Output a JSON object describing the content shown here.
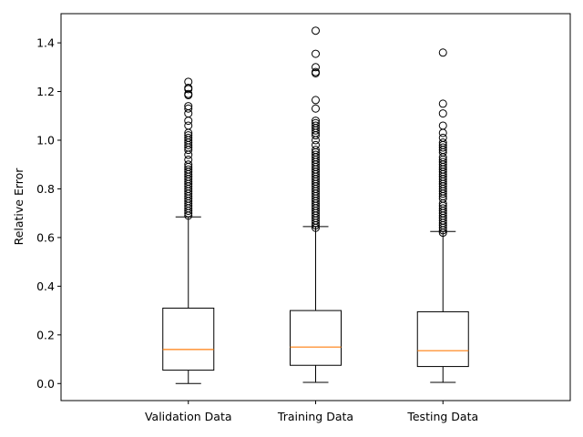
{
  "chart_data": {
    "type": "box",
    "title": "",
    "xlabel": "",
    "ylabel": "Relative Error",
    "ylim": [
      -0.07,
      1.52
    ],
    "yticks": [
      "0.0",
      "0.2",
      "0.4",
      "0.6",
      "0.8",
      "1.0",
      "1.2",
      "1.4"
    ],
    "grid": false,
    "colors": {
      "box": "#000000",
      "median": "#ff7f0e",
      "outlier": "#000000"
    },
    "categories": [
      "Validation Data",
      "Training Data",
      "Testing Data"
    ],
    "boxes": [
      {
        "name": "Validation Data",
        "whisker_low": 0.0,
        "q1": 0.055,
        "median": 0.14,
        "q3": 0.31,
        "whisker_high": 0.685,
        "outliers": [
          0.69,
          0.7,
          0.71,
          0.72,
          0.73,
          0.74,
          0.75,
          0.76,
          0.77,
          0.78,
          0.79,
          0.8,
          0.81,
          0.82,
          0.83,
          0.84,
          0.85,
          0.86,
          0.87,
          0.88,
          0.89,
          0.9,
          0.92,
          0.94,
          0.96,
          0.97,
          0.98,
          0.99,
          1.0,
          1.01,
          1.02,
          1.03,
          1.06,
          1.08,
          1.11,
          1.13,
          1.14,
          1.185,
          1.19,
          1.21,
          1.215,
          1.24
        ]
      },
      {
        "name": "Training Data",
        "whisker_low": 0.005,
        "q1": 0.075,
        "median": 0.15,
        "q3": 0.3,
        "whisker_high": 0.645,
        "outliers": [
          0.64,
          0.65,
          0.66,
          0.67,
          0.68,
          0.69,
          0.7,
          0.71,
          0.72,
          0.73,
          0.74,
          0.75,
          0.76,
          0.77,
          0.78,
          0.79,
          0.8,
          0.81,
          0.82,
          0.83,
          0.84,
          0.85,
          0.86,
          0.87,
          0.88,
          0.89,
          0.9,
          0.91,
          0.92,
          0.93,
          0.94,
          0.95,
          0.96,
          0.98,
          1.0,
          1.02,
          1.03,
          1.04,
          1.05,
          1.06,
          1.07,
          1.08,
          1.13,
          1.165,
          1.275,
          1.28,
          1.3,
          1.355,
          1.45
        ]
      },
      {
        "name": "Testing Data",
        "whisker_low": 0.005,
        "q1": 0.07,
        "median": 0.135,
        "q3": 0.295,
        "whisker_high": 0.625,
        "outliers": [
          0.62,
          0.63,
          0.64,
          0.65,
          0.66,
          0.67,
          0.68,
          0.69,
          0.7,
          0.71,
          0.72,
          0.73,
          0.74,
          0.76,
          0.77,
          0.78,
          0.79,
          0.8,
          0.81,
          0.82,
          0.83,
          0.84,
          0.85,
          0.86,
          0.87,
          0.88,
          0.89,
          0.9,
          0.91,
          0.92,
          0.93,
          0.95,
          0.96,
          0.97,
          0.98,
          0.99,
          1.01,
          1.03,
          1.06,
          1.11,
          1.15,
          1.36
        ]
      }
    ]
  }
}
